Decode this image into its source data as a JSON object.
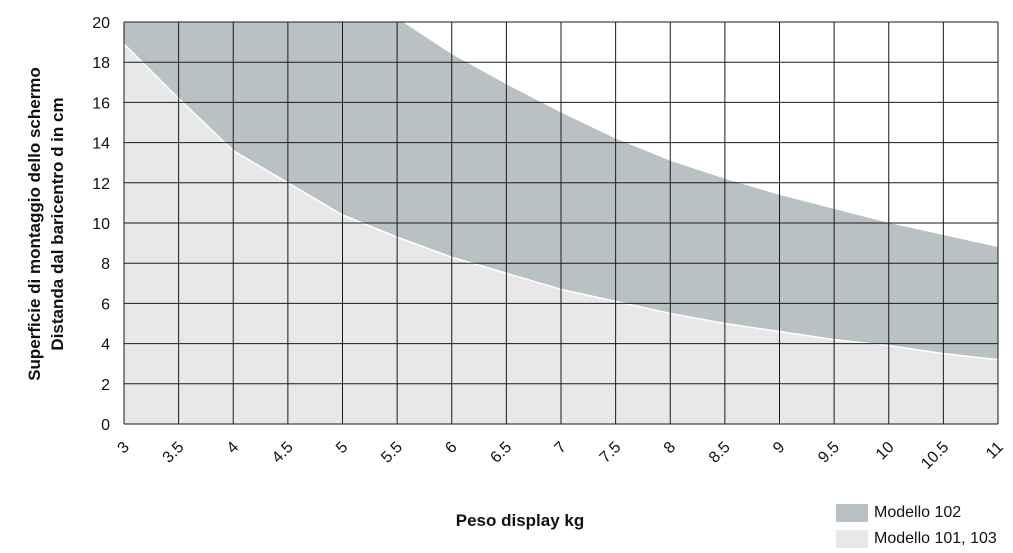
{
  "chart_data": {
    "type": "area",
    "title": "",
    "xlabel": "Peso display kg",
    "ylabel_lines": [
      "Superficie di montaggio dello schermo",
      "Distanda dal baricentro d in cm"
    ],
    "xlim": [
      3,
      11
    ],
    "ylim": [
      0,
      20
    ],
    "x_ticks": [
      "3",
      "3.5",
      "4",
      "4.5",
      "5",
      "5.5",
      "6",
      "6.5",
      "7",
      "7.5",
      "8",
      "8.5",
      "9",
      "9.5",
      "10",
      "10.5",
      "11"
    ],
    "y_ticks": [
      "0",
      "2",
      "4",
      "6",
      "8",
      "10",
      "12",
      "14",
      "16",
      "18",
      "20"
    ],
    "grid": true,
    "legend_position": "bottom-right",
    "series": [
      {
        "name": "Modello 102",
        "color": "#b9c1c4",
        "x": [
          5.55,
          6,
          6.5,
          7,
          7.5,
          8,
          8.5,
          9,
          9.5,
          10,
          10.5,
          11
        ],
        "y": [
          20,
          18.4,
          16.9,
          15.5,
          14.2,
          13.1,
          12.2,
          11.4,
          10.7,
          10.0,
          9.4,
          8.8
        ]
      },
      {
        "name": "Modello 101, 103",
        "color": "#e8e8e8",
        "x": [
          3,
          3.5,
          4,
          4.5,
          5,
          5.5,
          6,
          6.5,
          7,
          7.5,
          8,
          8.5,
          9,
          9.5,
          10,
          10.5,
          11
        ],
        "y": [
          18.9,
          16.2,
          13.6,
          12.0,
          10.4,
          9.3,
          8.3,
          7.5,
          6.7,
          6.1,
          5.5,
          5.0,
          4.6,
          4.2,
          3.9,
          3.5,
          3.2
        ]
      }
    ]
  }
}
